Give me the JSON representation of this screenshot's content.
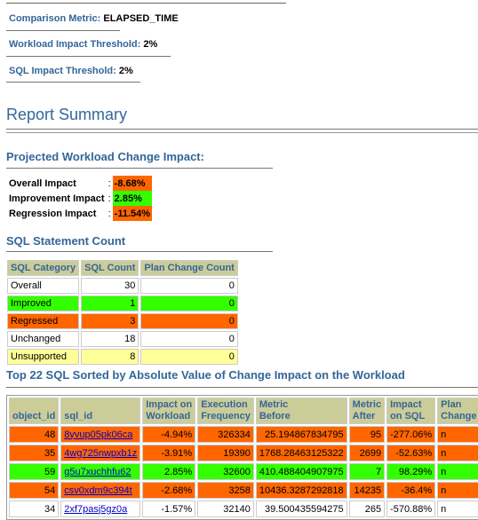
{
  "params": [
    {
      "label": "Comparison Metric:",
      "value": "ELAPSED_TIME"
    },
    {
      "label": "Workload Impact Threshold:",
      "value": "2%"
    },
    {
      "label": "SQL Impact Threshold:",
      "value": "2%"
    }
  ],
  "report_title": "Report Summary",
  "projected": {
    "heading": "Projected Workload Change Impact:",
    "rows": [
      {
        "label": "Overall Impact",
        "sep": ":",
        "value": "-8.68%",
        "color": "#ff6600"
      },
      {
        "label": "Improvement Impact",
        "sep": ":",
        "value": "2.85%",
        "color": "#33ff00"
      },
      {
        "label": "Regression Impact",
        "sep": ":",
        "value": "-11.54%",
        "color": "#ff6600"
      }
    ]
  },
  "sql_count": {
    "heading": "SQL Statement Count",
    "columns": [
      "SQL Category",
      "SQL Count",
      "Plan Change Count"
    ],
    "rows": [
      {
        "category": "Overall",
        "count": "30",
        "plan": "0",
        "color": "#ffffff"
      },
      {
        "category": "Improved",
        "count": "1",
        "plan": "0",
        "color": "#33ff00"
      },
      {
        "category": "Regressed",
        "count": "3",
        "plan": "0",
        "color": "#ff6600"
      },
      {
        "category": "Unchanged",
        "count": "18",
        "plan": "0",
        "color": "#ffffff"
      },
      {
        "category": "Unsupported",
        "count": "8",
        "plan": "0",
        "color": "#ffff99"
      }
    ]
  },
  "top_sql": {
    "heading": "Top 22 SQL Sorted by Absolute Value of Change Impact on the Workload",
    "columns": [
      [
        "object_id",
        ""
      ],
      [
        "sql_id",
        ""
      ],
      [
        "Impact on",
        "Workload"
      ],
      [
        "Execution",
        "Frequency"
      ],
      [
        "Metric",
        "Before"
      ],
      [
        "Metric",
        "After"
      ],
      [
        "Impact",
        "on SQL"
      ],
      [
        "Plan",
        "Change"
      ]
    ],
    "rows": [
      {
        "object_id": "48",
        "sql_id": "8yvup05pk06ca",
        "impact_workload": "-4.94%",
        "exec_freq": "326334",
        "metric_before": "25.194867834795",
        "metric_after": "95",
        "impact_sql": "-277.06%",
        "plan_change": "n",
        "color": "#ff6600"
      },
      {
        "object_id": "35",
        "sql_id": "4wg725nwpxb1z",
        "impact_workload": "-3.91%",
        "exec_freq": "19390",
        "metric_before": "1768.28463125322",
        "metric_after": "2699",
        "impact_sql": "-52.63%",
        "plan_change": "n",
        "color": "#ff6600"
      },
      {
        "object_id": "59",
        "sql_id": "g5u7xuchhfu62",
        "impact_workload": "2.85%",
        "exec_freq": "32600",
        "metric_before": "410.488404907975",
        "metric_after": "7",
        "impact_sql": "98.29%",
        "plan_change": "n",
        "color": "#33ff00"
      },
      {
        "object_id": "54",
        "sql_id": "csv0xdm9c394t",
        "impact_workload": "-2.68%",
        "exec_freq": "3258",
        "metric_before": "10436.3287292818",
        "metric_after": "14235",
        "impact_sql": "-36.4%",
        "plan_change": "n",
        "color": "#ff6600"
      },
      {
        "object_id": "34",
        "sql_id": "2xf7pasj5gz0a",
        "impact_workload": "-1.57%",
        "exec_freq": "32140",
        "metric_before": "39.500435594275",
        "metric_after": "265",
        "impact_sql": "-570.88%",
        "plan_change": "n",
        "color": "#ffffff"
      }
    ]
  }
}
